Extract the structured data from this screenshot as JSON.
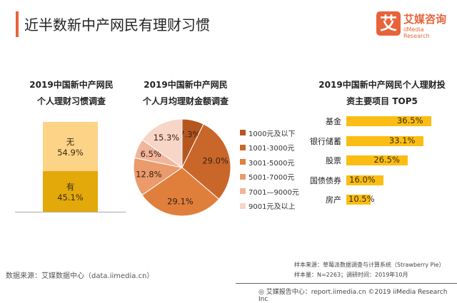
{
  "header": {
    "title": "近半数新中产网民有理财习惯",
    "logo": {
      "cn": "艾媒咨询",
      "en": "iiMedia Research",
      "mark": "艾"
    },
    "accent": "#e8633a"
  },
  "chart_data": [
    {
      "type": "bar",
      "stacked": true,
      "title_lines": [
        "2019中国新中产网民",
        "个人理财习惯调查"
      ],
      "series": [
        {
          "name": "有",
          "value": 45.1,
          "label": "45.1%",
          "color": "#e3a90a"
        },
        {
          "name": "无",
          "value": 54.9,
          "label": "54.9%",
          "color": "#fdd387"
        }
      ]
    },
    {
      "type": "pie",
      "title_lines": [
        "2019中国新中产网民",
        "个人月均理财金额调查"
      ],
      "categories": [
        "1000元及以下",
        "1001-3000元",
        "3001-5000元",
        "5001-7000元",
        "7001—9000元",
        "9001元及以上"
      ],
      "values": [
        7.3,
        29.0,
        29.1,
        12.8,
        6.5,
        15.3
      ],
      "labels": [
        "7.3%",
        "29.0%",
        "29.1%",
        "12.8%",
        "6.5%",
        "15.3%"
      ],
      "colors": [
        "#b5561f",
        "#c9672b",
        "#e07f3b",
        "#eb9a6c",
        "#f1b59b",
        "#f7d5c7"
      ],
      "legend": "right"
    },
    {
      "type": "bar",
      "orientation": "horizontal",
      "title_lines": [
        "2019中国新中产网民个人理财投",
        "资主要项目 TOP5"
      ],
      "categories": [
        "基金",
        "银行储蓄",
        "股票",
        "国债债券",
        "房产"
      ],
      "values": [
        36.5,
        33.1,
        26.5,
        16.0,
        10.5
      ],
      "labels": [
        "36.5%",
        "33.1%",
        "26.5%",
        "16.0%",
        "10.5%"
      ],
      "color": "#fbbd14"
    }
  ],
  "footer": {
    "source": "数据来源：艾媒数据中心（data.iimedia.cn）",
    "sample_source": "样本来源：草莓派数据调查与计算系统（Strawberry Pie）",
    "sample_size": "样本量：N=2263；调研时间：2019年10月",
    "copyright": "艾媒报告中心：report.iimedia.cn   ©2019  iiMedia Research  Inc"
  }
}
